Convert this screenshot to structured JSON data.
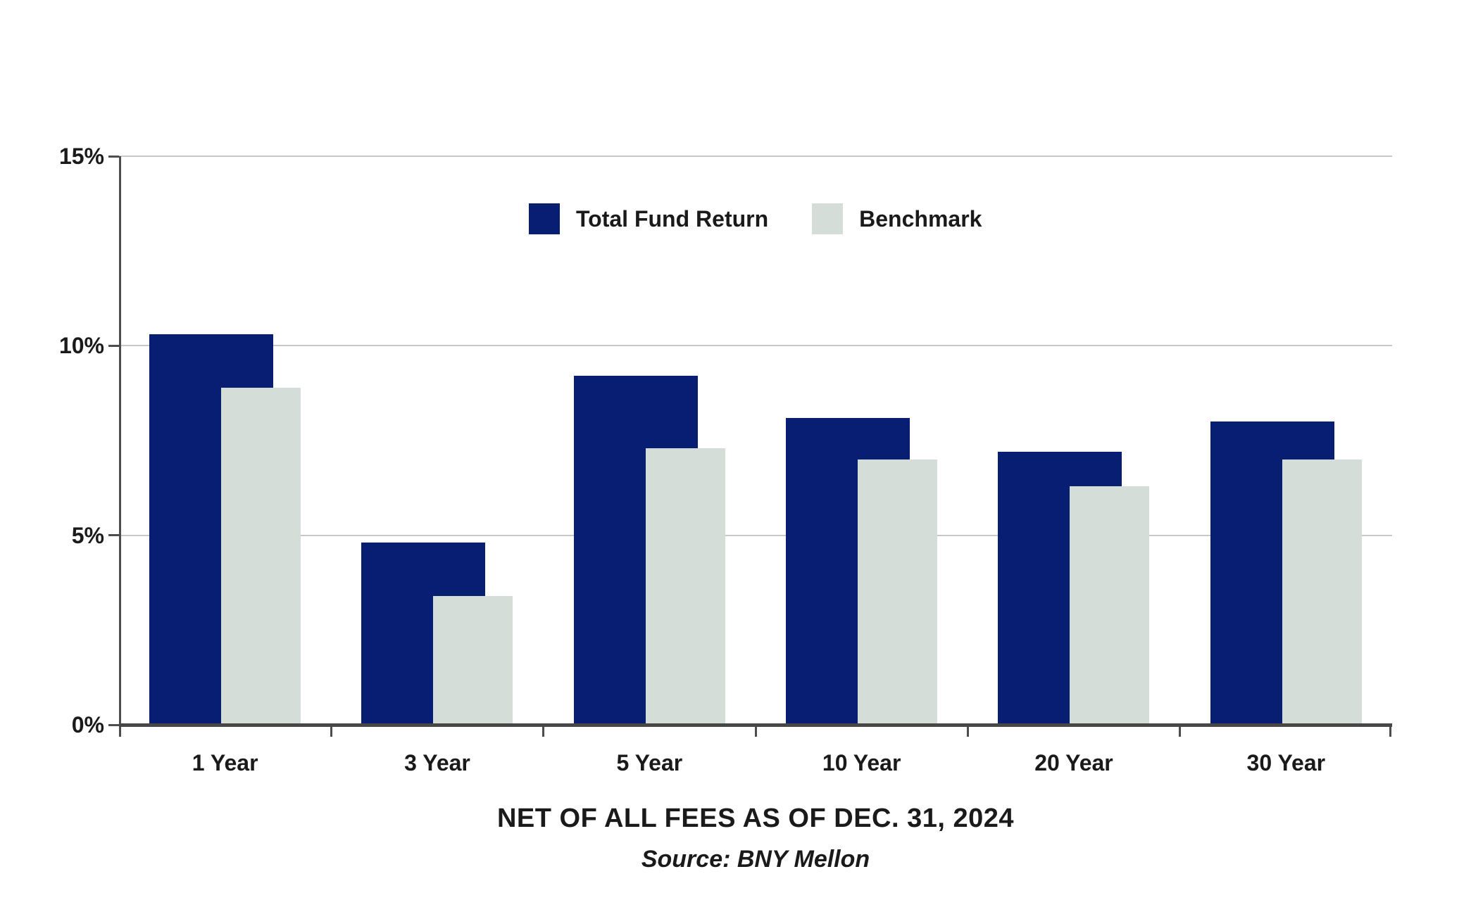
{
  "chart_data": {
    "type": "bar",
    "title": "",
    "xlabel": "",
    "ylabel": "",
    "categories": [
      "1 Year",
      "3 Year",
      "5 Year",
      "10 Year",
      "20 Year",
      "30 Year"
    ],
    "series": [
      {
        "name": "Total Fund Return",
        "color": "#081E73",
        "values": [
          10.3,
          4.8,
          9.2,
          8.1,
          7.2,
          8.0
        ]
      },
      {
        "name": "Benchmark",
        "color": "#D5DDD9",
        "values": [
          8.9,
          3.4,
          7.3,
          7.0,
          6.3,
          7.0
        ]
      }
    ],
    "ylim": [
      0,
      15
    ],
    "ytick_values": [
      0,
      5,
      10,
      15
    ],
    "ytick_labels": [
      "0%",
      "5%",
      "10%",
      "15%"
    ],
    "grid": true,
    "legend_position": "top-center",
    "caption": "NET OF ALL FEES AS OF DEC. 31, 2024",
    "source": "Source: BNY Mellon"
  }
}
